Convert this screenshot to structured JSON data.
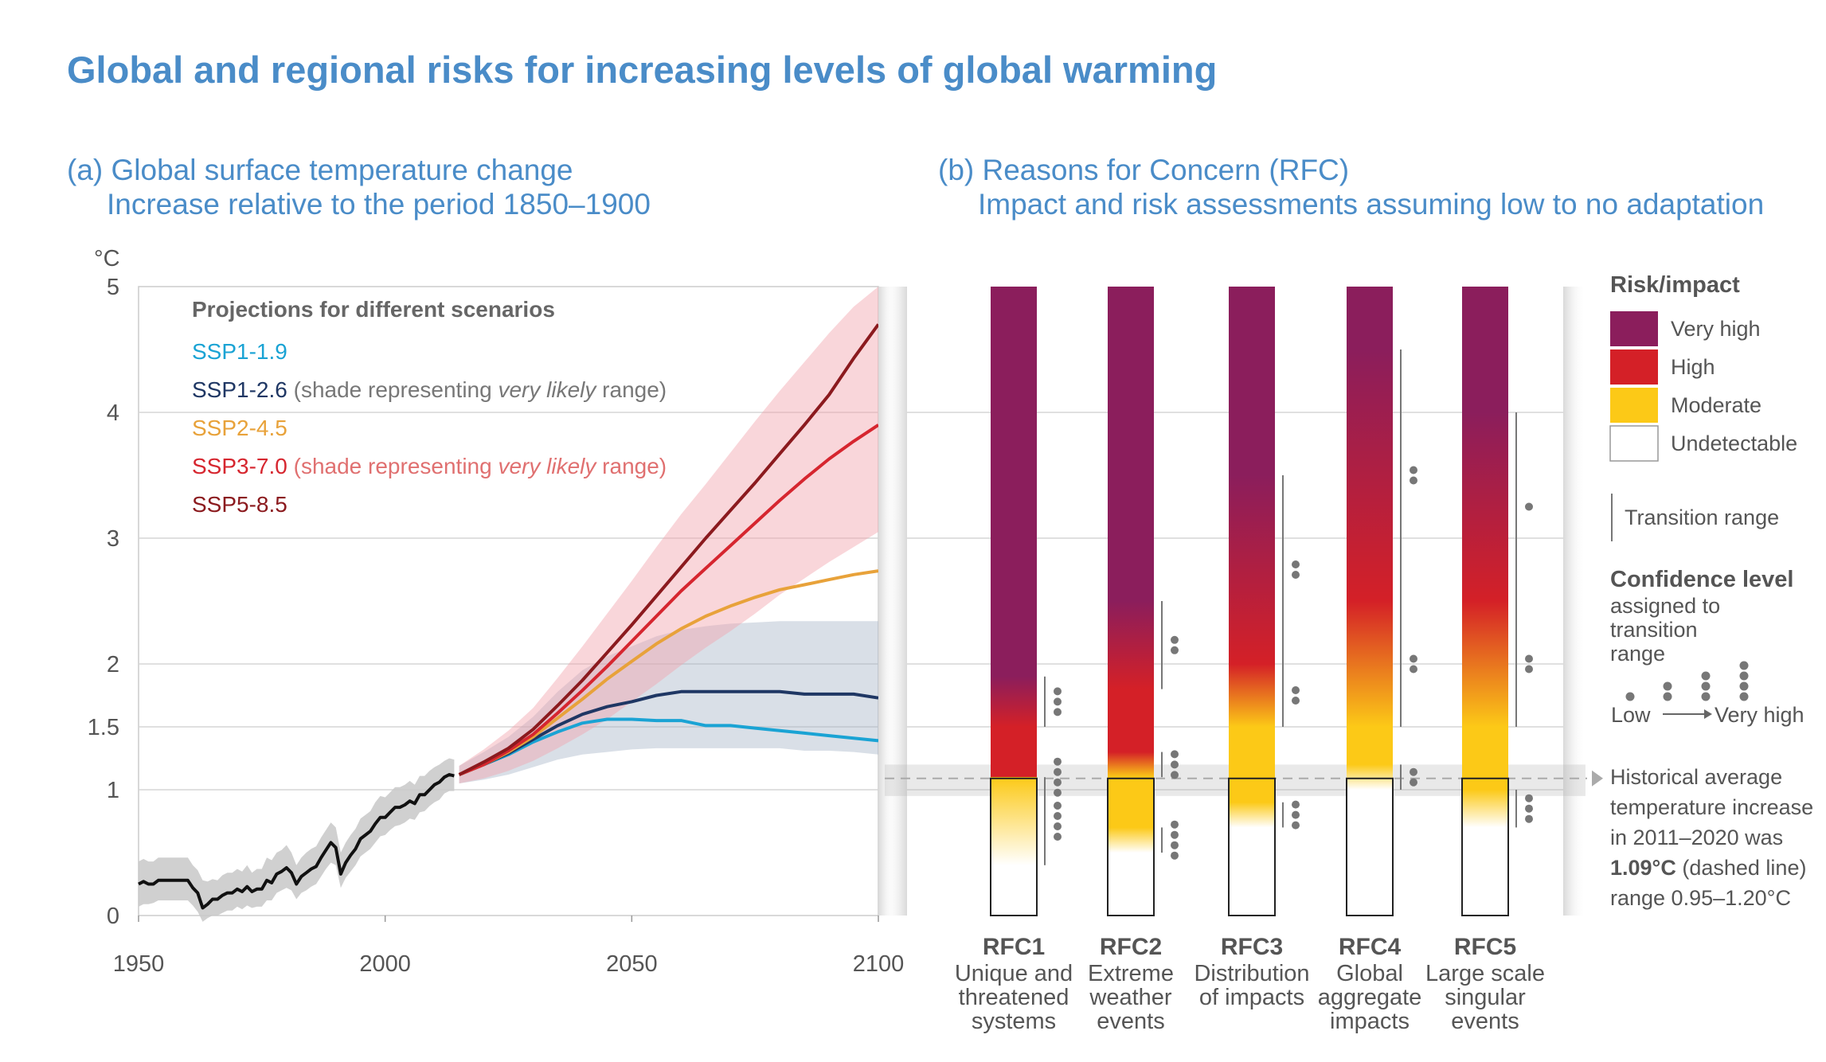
{
  "title": "Global and regional risks for increasing levels of global warming",
  "panel_a": {
    "title_line1": "(a) Global surface temperature change",
    "title_line2": "Increase relative to the period 1850–1900",
    "y_unit": "°C",
    "legend_title": "Projections for different scenarios",
    "legend": [
      {
        "parts": [
          {
            "text": "SSP1-1.9",
            "color": "#1aa3d4"
          }
        ]
      },
      {
        "parts": [
          {
            "text": "SSP1-2.6",
            "color": "#1f3764"
          },
          {
            "text": " (shade representing ",
            "color": "#777777"
          },
          {
            "text": "very likely",
            "color": "#777777",
            "italic": true
          },
          {
            "text": " range)",
            "color": "#777777"
          }
        ]
      },
      {
        "parts": [
          {
            "text": "SSP2-4.5",
            "color": "#e8a23a"
          }
        ]
      },
      {
        "parts": [
          {
            "text": "SSP3-7.0",
            "color": "#d6262f"
          },
          {
            "text": " (shade representing ",
            "color": "#e07070"
          },
          {
            "text": "very likely",
            "color": "#e07070",
            "italic": true
          },
          {
            "text": " range)",
            "color": "#e07070"
          }
        ]
      },
      {
        "parts": [
          {
            "text": "SSP5-8.5",
            "color": "#8b1a1e"
          }
        ]
      }
    ]
  },
  "panel_b": {
    "title_line1": "(b) Reasons for Concern (RFC)",
    "title_line2": "Impact and risk assessments assuming low to no adaptation",
    "rfcs": [
      {
        "name": "RFC1",
        "desc": [
          "Unique and",
          "threatened",
          "systems"
        ]
      },
      {
        "name": "RFC2",
        "desc": [
          "Extreme",
          "weather",
          "events"
        ]
      },
      {
        "name": "RFC3",
        "desc": [
          "Distribution",
          "of impacts"
        ]
      },
      {
        "name": "RFC4",
        "desc": [
          "Global",
          "aggregate",
          "impacts"
        ]
      },
      {
        "name": "RFC5",
        "desc": [
          "Large scale",
          "singular",
          "events"
        ]
      }
    ],
    "legend": {
      "title": "Risk/impact",
      "levels": [
        {
          "label": "Very high",
          "color": "#8b1e5c"
        },
        {
          "label": "High",
          "color": "#d42027"
        },
        {
          "label": "Moderate",
          "color": "#fcc917"
        },
        {
          "label": "Undetectable",
          "color": "#ffffff"
        }
      ],
      "transition": "Transition range",
      "confidence_title": "Confidence level",
      "confidence_sub": [
        "assigned to",
        "transition",
        "range"
      ],
      "low": "Low",
      "very_high": "Very high",
      "historical": [
        "Historical average",
        "temperature increase",
        "in 2011–2020 was"
      ],
      "historical_bold": "1.09°C",
      "historical_rest": " (dashed line)",
      "historical_range": "range 0.95–1.20°C"
    }
  },
  "chart_data": [
    {
      "type": "line",
      "title": "(a) Global surface temperature change — Increase relative to the period 1850–1900",
      "ylabel": "°C",
      "xlim": [
        1950,
        2100
      ],
      "ylim": [
        0,
        5
      ],
      "x_ticks": [
        1950,
        2000,
        2050,
        2100
      ],
      "y_ticks": [
        0,
        1,
        1.5,
        2,
        3,
        4,
        5
      ],
      "y_tick_labels": [
        "0",
        "1",
        "1.5",
        "2",
        "3",
        "4",
        "5"
      ],
      "historical": {
        "color": "#111111",
        "x": [
          1950,
          1951,
          1952,
          1953,
          1954,
          1955,
          1956,
          1957,
          1958,
          1959,
          1960,
          1961,
          1962,
          1963,
          1964,
          1965,
          1966,
          1967,
          1968,
          1969,
          1970,
          1971,
          1972,
          1973,
          1974,
          1975,
          1976,
          1977,
          1978,
          1979,
          1980,
          1981,
          1982,
          1983,
          1984,
          1985,
          1986,
          1987,
          1988,
          1989,
          1990,
          1991,
          1992,
          1993,
          1994,
          1995,
          1996,
          1997,
          1998,
          1999,
          2000,
          2001,
          2002,
          2003,
          2004,
          2005,
          2006,
          2007,
          2008,
          2009,
          2010,
          2011,
          2012,
          2013,
          2014
        ],
        "y": [
          0.25,
          0.27,
          0.25,
          0.25,
          0.28,
          0.28,
          0.28,
          0.28,
          0.28,
          0.28,
          0.28,
          0.22,
          0.18,
          0.06,
          0.09,
          0.13,
          0.13,
          0.16,
          0.18,
          0.18,
          0.21,
          0.19,
          0.23,
          0.19,
          0.21,
          0.21,
          0.28,
          0.26,
          0.33,
          0.35,
          0.38,
          0.34,
          0.25,
          0.31,
          0.34,
          0.37,
          0.39,
          0.46,
          0.52,
          0.58,
          0.54,
          0.33,
          0.42,
          0.48,
          0.53,
          0.61,
          0.64,
          0.67,
          0.73,
          0.78,
          0.78,
          0.82,
          0.86,
          0.86,
          0.88,
          0.91,
          0.89,
          0.96,
          0.96,
          1.0,
          1.04,
          1.06,
          1.1,
          1.12,
          1.11
        ],
        "range_low": [
          0.07,
          0.09,
          0.09,
          0.1,
          0.12,
          0.12,
          0.12,
          0.12,
          0.12,
          0.12,
          0.12,
          0.08,
          0.03,
          -0.05,
          -0.02,
          0.0,
          0.0,
          0.02,
          0.04,
          0.04,
          0.07,
          0.05,
          0.08,
          0.06,
          0.07,
          0.07,
          0.12,
          0.12,
          0.18,
          0.2,
          0.22,
          0.2,
          0.13,
          0.18,
          0.2,
          0.23,
          0.25,
          0.31,
          0.37,
          0.42,
          0.4,
          0.22,
          0.3,
          0.35,
          0.4,
          0.47,
          0.5,
          0.53,
          0.58,
          0.63,
          0.64,
          0.68,
          0.71,
          0.72,
          0.74,
          0.77,
          0.76,
          0.82,
          0.83,
          0.87,
          0.9,
          0.92,
          0.97,
          0.99,
          0.99
        ],
        "range_high": [
          0.43,
          0.45,
          0.43,
          0.43,
          0.46,
          0.46,
          0.46,
          0.46,
          0.46,
          0.46,
          0.46,
          0.4,
          0.36,
          0.28,
          0.27,
          0.29,
          0.28,
          0.32,
          0.34,
          0.34,
          0.37,
          0.35,
          0.4,
          0.34,
          0.37,
          0.37,
          0.46,
          0.44,
          0.5,
          0.52,
          0.56,
          0.5,
          0.4,
          0.46,
          0.5,
          0.53,
          0.55,
          0.62,
          0.68,
          0.74,
          0.7,
          0.5,
          0.58,
          0.64,
          0.69,
          0.77,
          0.8,
          0.83,
          0.9,
          0.95,
          0.94,
          0.98,
          1.02,
          1.02,
          1.04,
          1.07,
          1.04,
          1.11,
          1.11,
          1.15,
          1.18,
          1.2,
          1.23,
          1.25,
          1.24
        ]
      },
      "x": [
        2015,
        2020,
        2025,
        2030,
        2035,
        2040,
        2045,
        2050,
        2055,
        2060,
        2065,
        2070,
        2075,
        2080,
        2085,
        2090,
        2095,
        2100
      ],
      "series": [
        {
          "name": "SSP1-1.9",
          "color": "#1aa3d4",
          "values": [
            1.12,
            1.2,
            1.28,
            1.38,
            1.46,
            1.53,
            1.56,
            1.56,
            1.55,
            1.55,
            1.51,
            1.51,
            1.49,
            1.47,
            1.45,
            1.43,
            1.41,
            1.39
          ]
        },
        {
          "name": "SSP1-2.6",
          "color": "#1f3764",
          "values": [
            1.12,
            1.2,
            1.29,
            1.4,
            1.51,
            1.6,
            1.66,
            1.7,
            1.75,
            1.78,
            1.78,
            1.78,
            1.78,
            1.78,
            1.76,
            1.76,
            1.76,
            1.73
          ],
          "range_low": [
            1.05,
            1.08,
            1.12,
            1.18,
            1.24,
            1.28,
            1.3,
            1.32,
            1.33,
            1.33,
            1.33,
            1.33,
            1.33,
            1.33,
            1.31,
            1.31,
            1.3,
            1.28
          ],
          "range_high": [
            1.19,
            1.3,
            1.42,
            1.58,
            1.78,
            1.95,
            2.06,
            2.14,
            2.22,
            2.27,
            2.3,
            2.32,
            2.33,
            2.34,
            2.34,
            2.34,
            2.34,
            2.34
          ]
        },
        {
          "name": "SSP2-4.5",
          "color": "#e8a23a",
          "values": [
            1.12,
            1.2,
            1.3,
            1.42,
            1.57,
            1.72,
            1.88,
            2.02,
            2.16,
            2.28,
            2.38,
            2.46,
            2.53,
            2.59,
            2.63,
            2.67,
            2.71,
            2.74
          ]
        },
        {
          "name": "SSP3-7.0",
          "color": "#d6262f",
          "values": [
            1.12,
            1.2,
            1.31,
            1.44,
            1.61,
            1.79,
            1.98,
            2.18,
            2.38,
            2.58,
            2.76,
            2.94,
            3.12,
            3.3,
            3.47,
            3.63,
            3.77,
            3.9
          ],
          "range_low": [
            1.05,
            1.09,
            1.15,
            1.23,
            1.33,
            1.44,
            1.56,
            1.7,
            1.84,
            1.99,
            2.13,
            2.26,
            2.4,
            2.55,
            2.68,
            2.81,
            2.93,
            3.05
          ],
          "range_high": [
            1.19,
            1.32,
            1.47,
            1.65,
            1.89,
            2.14,
            2.4,
            2.66,
            2.93,
            3.19,
            3.43,
            3.68,
            3.93,
            4.17,
            4.4,
            4.63,
            4.84,
            5.0
          ]
        },
        {
          "name": "SSP5-8.5",
          "color": "#8b1a1e",
          "values": [
            1.12,
            1.22,
            1.33,
            1.48,
            1.67,
            1.87,
            2.09,
            2.31,
            2.54,
            2.77,
            3.0,
            3.22,
            3.44,
            3.67,
            3.9,
            4.14,
            4.43,
            4.7
          ]
        }
      ]
    },
    {
      "type": "heatmap",
      "title": "(b) Reasons for Concern (RFC)",
      "ylabel": "°C",
      "ylim": [
        0,
        5
      ],
      "categories": [
        "RFC1",
        "RFC2",
        "RFC3",
        "RFC4",
        "RFC5"
      ],
      "levels": [
        "Undetectable",
        "Moderate",
        "High",
        "Very high"
      ],
      "historical_warming": 1.09,
      "historical_range": [
        0.95,
        1.2
      ],
      "bars": [
        {
          "name": "RFC1",
          "transitions": [
            {
              "from": "Undetectable",
              "to": "Moderate",
              "range": [
                0.4,
                1.1
              ],
              "confidence_dots": 4
            },
            {
              "from": "Moderate",
              "to": "High",
              "range": [
                1.1,
                1.1
              ],
              "confidence_dots": 4
            },
            {
              "from": "High",
              "to": "Very high",
              "range": [
                1.5,
                1.9
              ],
              "confidence_dots": 3
            }
          ]
        },
        {
          "name": "RFC2",
          "transitions": [
            {
              "from": "Undetectable",
              "to": "Moderate",
              "range": [
                0.5,
                0.7
              ],
              "confidence_dots": 4
            },
            {
              "from": "Moderate",
              "to": "High",
              "range": [
                1.1,
                1.3
              ],
              "confidence_dots": 3
            },
            {
              "from": "High",
              "to": "Very high",
              "range": [
                1.8,
                2.5
              ],
              "confidence_dots": 2
            }
          ]
        },
        {
          "name": "RFC3",
          "transitions": [
            {
              "from": "Undetectable",
              "to": "Moderate",
              "range": [
                0.7,
                0.9
              ],
              "confidence_dots": 3
            },
            {
              "from": "Moderate",
              "to": "High",
              "range": [
                1.5,
                2.0
              ],
              "confidence_dots": 2
            },
            {
              "from": "High",
              "to": "Very high",
              "range": [
                2.0,
                3.5
              ],
              "confidence_dots": 2
            }
          ]
        },
        {
          "name": "RFC4",
          "transitions": [
            {
              "from": "Undetectable",
              "to": "Moderate",
              "range": [
                1.0,
                1.2
              ],
              "confidence_dots": 2
            },
            {
              "from": "Moderate",
              "to": "High",
              "range": [
                1.5,
                2.5
              ],
              "confidence_dots": 2
            },
            {
              "from": "High",
              "to": "Very high",
              "range": [
                2.5,
                4.5
              ],
              "confidence_dots": 2
            }
          ]
        },
        {
          "name": "RFC5",
          "transitions": [
            {
              "from": "Undetectable",
              "to": "Moderate",
              "range": [
                0.7,
                1.0
              ],
              "confidence_dots": 3
            },
            {
              "from": "Moderate",
              "to": "High",
              "range": [
                1.5,
                2.5
              ],
              "confidence_dots": 2
            },
            {
              "from": "High",
              "to": "Very high",
              "range": [
                2.5,
                4.0
              ],
              "confidence_dots": 1
            }
          ]
        }
      ]
    }
  ]
}
